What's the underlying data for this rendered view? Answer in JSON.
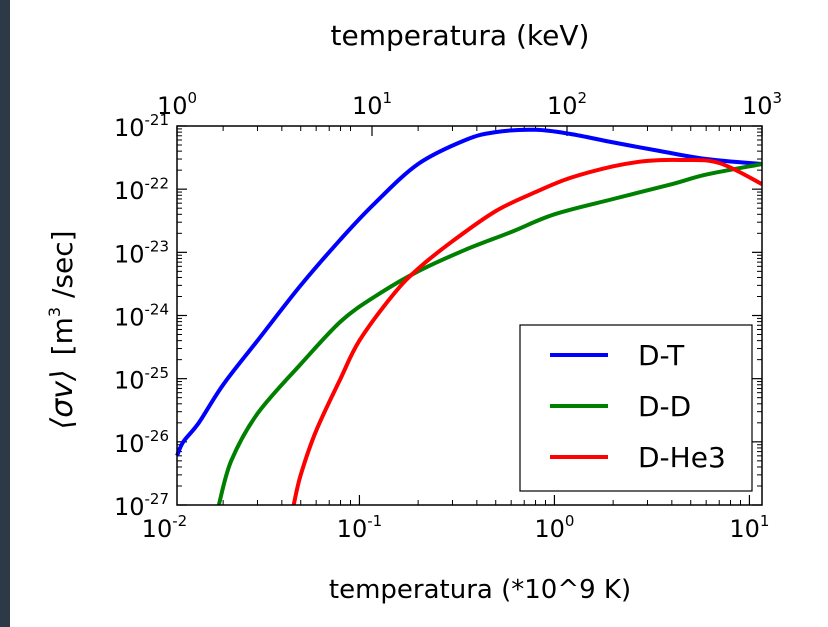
{
  "chart_data": {
    "type": "line",
    "top_axis_label": "temperatura (keV)",
    "xlabel": "temperatura (*10^9 K)",
    "ylabel_symbol": "⟨σv⟩",
    "ylabel_unit_prefix": "[m",
    "ylabel_unit_exp": "3",
    "ylabel_unit_suffix": " /sec]",
    "x_scale": "log",
    "y_scale": "log",
    "xlim": [
      0.0116,
      11.6
    ],
    "ylim": [
      1e-27,
      1e-21
    ],
    "top_xlim": [
      1,
      1000
    ],
    "x_ticks": [
      {
        "value": 0.01,
        "base": "10",
        "exp": "-2"
      },
      {
        "value": 0.1,
        "base": "10",
        "exp": "-1"
      },
      {
        "value": 1,
        "base": "10",
        "exp": "0"
      },
      {
        "value": 10,
        "base": "10",
        "exp": "1"
      }
    ],
    "top_ticks": [
      {
        "value": 1,
        "base": "10",
        "exp": "0"
      },
      {
        "value": 10,
        "base": "10",
        "exp": "1"
      },
      {
        "value": 100,
        "base": "10",
        "exp": "2"
      },
      {
        "value": 1000,
        "base": "10",
        "exp": "3"
      }
    ],
    "y_ticks": [
      {
        "value": 1e-21,
        "base": "10",
        "exp": "-21"
      },
      {
        "value": 1e-22,
        "base": "10",
        "exp": "-22"
      },
      {
        "value": 1e-23,
        "base": "10",
        "exp": "-23"
      },
      {
        "value": 1e-24,
        "base": "10",
        "exp": "-24"
      },
      {
        "value": 1e-25,
        "base": "10",
        "exp": "-25"
      },
      {
        "value": 1e-26,
        "base": "10",
        "exp": "-26"
      },
      {
        "value": 1e-27,
        "base": "10",
        "exp": "-27"
      }
    ],
    "grid": false,
    "legend_position": "bottom-right",
    "series": [
      {
        "name": "D-T",
        "color": "#0000ff",
        "x": [
          0.0116,
          0.0125,
          0.015,
          0.02,
          0.03,
          0.05,
          0.08,
          0.12,
          0.2,
          0.35,
          0.5,
          0.8,
          1.2,
          2,
          3.5,
          6,
          11.6
        ],
        "y": [
          6e-27,
          1e-26,
          2e-26,
          8e-26,
          4e-25,
          3e-24,
          1.6e-23,
          6e-23,
          2.5e-22,
          6e-22,
          8e-22,
          8.7e-22,
          7.5e-22,
          5.5e-22,
          4e-22,
          3e-22,
          2.5e-22
        ]
      },
      {
        "name": "D-D",
        "color": "#008000",
        "x": [
          0.019,
          0.022,
          0.03,
          0.05,
          0.08,
          0.12,
          0.2,
          0.35,
          0.6,
          1,
          2,
          4,
          6,
          11.6
        ],
        "y": [
          1e-27,
          5e-27,
          2.8e-26,
          1.7e-25,
          8e-25,
          2e-24,
          5e-24,
          1.1e-23,
          2.1e-23,
          4e-23,
          7e-23,
          1.2e-22,
          1.7e-22,
          2.5e-22
        ]
      },
      {
        "name": "D-He3",
        "color": "#ff0000",
        "x": [
          0.046,
          0.05,
          0.06,
          0.08,
          0.1,
          0.15,
          0.2,
          0.3,
          0.5,
          0.8,
          1.2,
          2,
          3,
          4.5,
          7,
          11.6
        ],
        "y": [
          1e-27,
          3e-27,
          1.5e-26,
          1e-25,
          4e-25,
          2.2e-24,
          5.5e-24,
          1.5e-23,
          4.5e-23,
          9e-23,
          1.5e-22,
          2.3e-22,
          2.8e-22,
          2.9e-22,
          2.6e-22,
          1.2e-22
        ]
      }
    ]
  }
}
